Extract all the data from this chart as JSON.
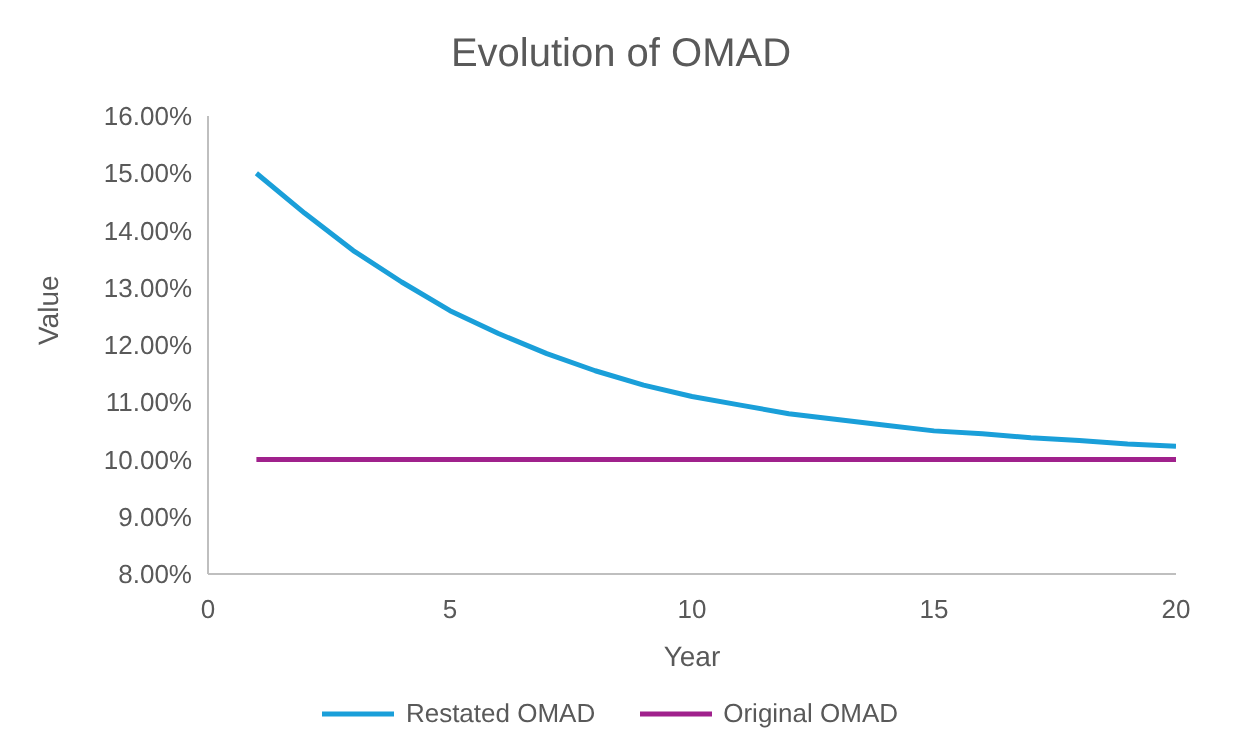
{
  "chart_data": {
    "type": "line",
    "title": "Evolution of OMAD",
    "xlabel": "Year",
    "ylabel": "Value",
    "x": [
      1,
      2,
      3,
      4,
      5,
      6,
      7,
      8,
      9,
      10,
      11,
      12,
      13,
      14,
      15,
      16,
      17,
      18,
      19,
      20
    ],
    "series": [
      {
        "name": "Restated OMAD",
        "color": "#1a9fd9",
        "values": [
          15.0,
          14.3,
          13.65,
          13.1,
          12.6,
          12.2,
          11.85,
          11.55,
          11.3,
          11.1,
          10.95,
          10.8,
          10.7,
          10.6,
          10.5,
          10.45,
          10.38,
          10.33,
          10.27,
          10.23
        ]
      },
      {
        "name": "Original OMAD",
        "color": "#a0218c",
        "values": [
          10,
          10,
          10,
          10,
          10,
          10,
          10,
          10,
          10,
          10,
          10,
          10,
          10,
          10,
          10,
          10,
          10,
          10,
          10,
          10
        ]
      }
    ],
    "xlim": [
      0,
      20
    ],
    "xticks": [
      0,
      5,
      10,
      15,
      20
    ],
    "ylim": [
      8,
      16
    ],
    "yticks": [
      {
        "value": 8,
        "label": "8.00%"
      },
      {
        "value": 9,
        "label": "9.00%"
      },
      {
        "value": 10,
        "label": "10.00%"
      },
      {
        "value": 11,
        "label": "11.00%"
      },
      {
        "value": 12,
        "label": "12.00%"
      },
      {
        "value": 13,
        "label": "13.00%"
      },
      {
        "value": 14,
        "label": "14.00%"
      },
      {
        "value": 15,
        "label": "15.00%"
      },
      {
        "value": 16,
        "label": "16.00%"
      }
    ],
    "grid": false,
    "legend": "bottom",
    "marker": "none",
    "line_style": "solid"
  }
}
